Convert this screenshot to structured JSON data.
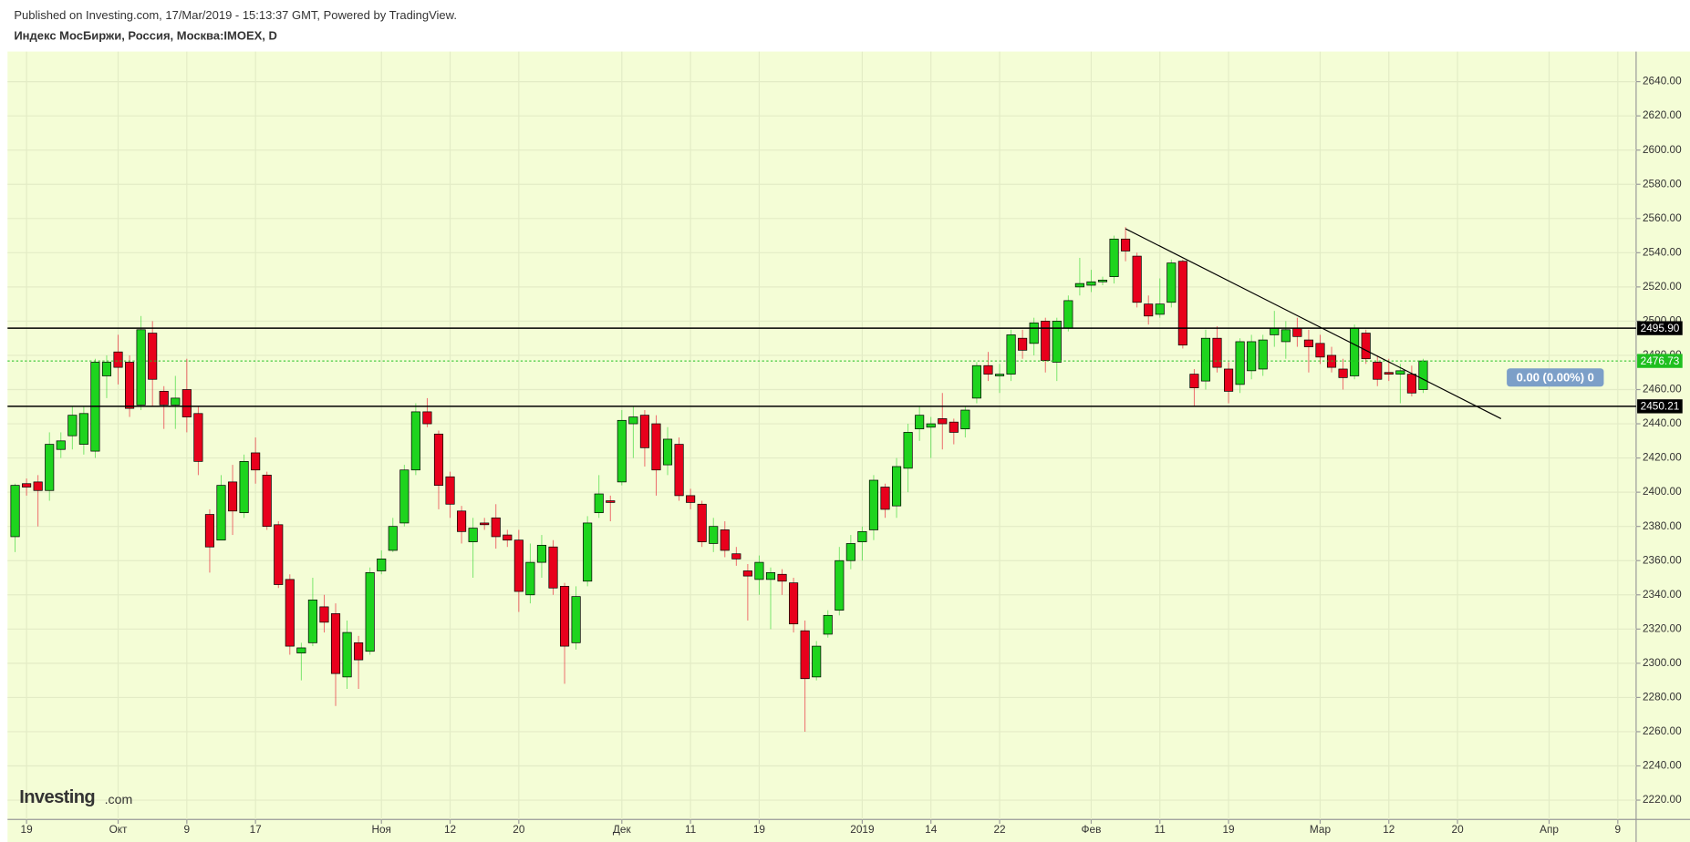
{
  "header": {
    "published": "Published on Investing.com, 17/Mar/2019 - 15:13:37 GMT, Powered by TradingView.",
    "instrument": "Индекс МосБиржи, Россия, Москва:IMOEX, D"
  },
  "logo": {
    "brand": "Investing",
    "suffix": ".com"
  },
  "chart_data": {
    "type": "candlestick",
    "up_color": "#1ed41e",
    "down_color": "#e8001c",
    "open": [
      2374,
      2405,
      2406,
      2401,
      2425,
      2433,
      2428,
      2424,
      2468,
      2482,
      2476,
      2451,
      2493,
      2459,
      2451,
      2460,
      2446,
      2387,
      2372,
      2406,
      2388,
      2423,
      2410,
      2381,
      2349,
      2306,
      2312,
      2333,
      2329,
      2292,
      2312,
      2307,
      2354,
      2366,
      2382,
      2413,
      2447,
      2434,
      2409,
      2389,
      2371,
      2382,
      2385,
      2375,
      2372,
      2340,
      2359,
      2368,
      2345,
      2312,
      2348,
      2388,
      2395,
      2406,
      2440,
      2445,
      2440,
      2416,
      2428,
      2398,
      2393,
      2370,
      2378,
      2364,
      2354,
      2349,
      2349,
      2352,
      2347,
      2319,
      2292,
      2317,
      2331,
      2360,
      2371,
      2378,
      2403,
      2392,
      2414,
      2437,
      2438,
      2443,
      2441,
      2437,
      2455,
      2474,
      2468,
      2469,
      2490,
      2487,
      2500,
      2476,
      2496,
      2520,
      2521,
      2523,
      2526,
      2548,
      2538,
      2510,
      2504,
      2511,
      2535,
      2469,
      2465,
      2490,
      2472,
      2463,
      2471,
      2472,
      2492,
      2488,
      2496,
      2489,
      2487,
      2480,
      2472,
      2468,
      2493,
      2476,
      2470,
      2469,
      2469,
      2460
    ],
    "high": [
      2405,
      2408,
      2410,
      2435,
      2435,
      2450,
      2450,
      2478,
      2480,
      2492,
      2480,
      2503,
      2500,
      2462,
      2468,
      2478,
      2450,
      2390,
      2410,
      2416,
      2422,
      2432,
      2412,
      2383,
      2352,
      2312,
      2350,
      2340,
      2335,
      2325,
      2316,
      2356,
      2366,
      2385,
      2416,
      2452,
      2455,
      2436,
      2412,
      2392,
      2385,
      2385,
      2393,
      2378,
      2378,
      2370,
      2375,
      2372,
      2347,
      2345,
      2386,
      2410,
      2398,
      2448,
      2450,
      2448,
      2445,
      2438,
      2432,
      2402,
      2395,
      2385,
      2383,
      2368,
      2358,
      2363,
      2356,
      2355,
      2350,
      2325,
      2313,
      2331,
      2368,
      2375,
      2380,
      2410,
      2405,
      2420,
      2440,
      2450,
      2444,
      2458,
      2443,
      2450,
      2476,
      2482,
      2475,
      2495,
      2495,
      2502,
      2502,
      2502,
      2515,
      2537,
      2530,
      2526,
      2550,
      2555,
      2540,
      2515,
      2525,
      2536,
      2536,
      2472,
      2495,
      2497,
      2476,
      2490,
      2492,
      2492,
      2506,
      2500,
      2502,
      2495,
      2492,
      2485,
      2478,
      2498,
      2495,
      2480,
      2478,
      2475,
      2474,
      2478
    ],
    "low": [
      2365,
      2398,
      2380,
      2395,
      2420,
      2425,
      2422,
      2420,
      2455,
      2463,
      2444,
      2448,
      2450,
      2437,
      2437,
      2435,
      2410,
      2353,
      2372,
      2375,
      2385,
      2405,
      2378,
      2344,
      2305,
      2290,
      2310,
      2318,
      2275,
      2285,
      2285,
      2305,
      2352,
      2365,
      2380,
      2410,
      2438,
      2390,
      2385,
      2370,
      2350,
      2378,
      2367,
      2368,
      2330,
      2335,
      2350,
      2340,
      2288,
      2308,
      2345,
      2385,
      2383,
      2404,
      2420,
      2415,
      2398,
      2410,
      2395,
      2390,
      2368,
      2365,
      2362,
      2357,
      2325,
      2340,
      2320,
      2340,
      2318,
      2260,
      2290,
      2315,
      2328,
      2355,
      2360,
      2372,
      2385,
      2385,
      2400,
      2430,
      2420,
      2425,
      2428,
      2432,
      2452,
      2465,
      2458,
      2465,
      2478,
      2480,
      2470,
      2465,
      2494,
      2515,
      2517,
      2521,
      2522,
      2535,
      2508,
      2498,
      2502,
      2508,
      2484,
      2450,
      2460,
      2470,
      2452,
      2458,
      2466,
      2468,
      2485,
      2478,
      2485,
      2470,
      2475,
      2470,
      2460,
      2466,
      2475,
      2462,
      2465,
      2452,
      2456,
      2458
    ],
    "close": [
      2404,
      2403,
      2401,
      2428,
      2430,
      2445,
      2446,
      2476,
      2476,
      2473,
      2449,
      2495,
      2466,
      2451,
      2455,
      2444,
      2418,
      2368,
      2404,
      2389,
      2418,
      2413,
      2380,
      2346,
      2310,
      2309,
      2337,
      2324,
      2294,
      2318,
      2302,
      2353,
      2361,
      2380,
      2413,
      2447,
      2440,
      2404,
      2393,
      2377,
      2379,
      2381,
      2374,
      2372,
      2342,
      2359,
      2369,
      2344,
      2310,
      2339,
      2382,
      2399,
      2394,
      2442,
      2444,
      2426,
      2413,
      2431,
      2398,
      2394,
      2371,
      2380,
      2366,
      2361,
      2351,
      2359,
      2353,
      2348,
      2323,
      2291,
      2310,
      2328,
      2360,
      2370,
      2377,
      2407,
      2390,
      2415,
      2435,
      2445,
      2440,
      2440,
      2435,
      2448,
      2474,
      2469,
      2469,
      2492,
      2483,
      2499,
      2477,
      2500,
      2512,
      2522,
      2523,
      2524,
      2548,
      2541,
      2511,
      2503,
      2510,
      2534,
      2486,
      2461,
      2490,
      2473,
      2459,
      2488,
      2488,
      2489,
      2496,
      2495,
      2491,
      2485,
      2479,
      2473,
      2467,
      2496,
      2478,
      2466,
      2469,
      2471,
      2458,
      2476.73
    ],
    "xlim": [
      -0.66,
      141.6
    ],
    "xticks": [
      {
        "value": 1,
        "label": "19"
      },
      {
        "value": 9,
        "label": "Окт"
      },
      {
        "value": 15,
        "label": "9"
      },
      {
        "value": 21,
        "label": "17"
      },
      {
        "value": 32,
        "label": "Ноя"
      },
      {
        "value": 38,
        "label": "12"
      },
      {
        "value": 44,
        "label": "20"
      },
      {
        "value": 53,
        "label": "Дек"
      },
      {
        "value": 59,
        "label": "11"
      },
      {
        "value": 65,
        "label": "19"
      },
      {
        "value": 74,
        "label": "2019"
      },
      {
        "value": 80,
        "label": "14"
      },
      {
        "value": 86,
        "label": "22"
      },
      {
        "value": 94,
        "label": "Фев"
      },
      {
        "value": 100,
        "label": "11"
      },
      {
        "value": 106,
        "label": "19"
      },
      {
        "value": 114,
        "label": "Мар"
      },
      {
        "value": 120,
        "label": "12"
      },
      {
        "value": 126,
        "label": "20"
      },
      {
        "value": 134,
        "label": "Апр"
      },
      {
        "value": 140,
        "label": "9"
      }
    ],
    "ylim": [
      2208.7,
      2657.6
    ],
    "yticks": [
      {
        "value": 2220,
        "label": "2220.00"
      },
      {
        "value": 2240,
        "label": "2240.00"
      },
      {
        "value": 2260,
        "label": "2260.00"
      },
      {
        "value": 2280,
        "label": "2280.00"
      },
      {
        "value": 2300,
        "label": "2300.00"
      },
      {
        "value": 2320,
        "label": "2320.00"
      },
      {
        "value": 2340,
        "label": "2340.00"
      },
      {
        "value": 2360,
        "label": "2360.00"
      },
      {
        "value": 2380,
        "label": "2380.00"
      },
      {
        "value": 2400,
        "label": "2400.00"
      },
      {
        "value": 2420,
        "label": "2420.00"
      },
      {
        "value": 2440,
        "label": "2440.00"
      },
      {
        "value": 2460,
        "label": "2460.00"
      },
      {
        "value": 2480,
        "label": "2480.00"
      },
      {
        "value": 2500,
        "label": "2500.00"
      },
      {
        "value": 2520,
        "label": "2520.00"
      },
      {
        "value": 2540,
        "label": "2540.00"
      },
      {
        "value": 2560,
        "label": "2560.00"
      },
      {
        "value": 2580,
        "label": "2580.00"
      },
      {
        "value": 2600,
        "label": "2600.00"
      },
      {
        "value": 2620,
        "label": "2620.00"
      },
      {
        "value": 2640,
        "label": "2640.00"
      }
    ],
    "grid": true,
    "levels": [
      {
        "price": {
          "value": 2495.9,
          "label": "2495.90"
        },
        "color": "#000000"
      },
      {
        "price": 2476.73,
        "color": "#1fbf1f",
        "dashed": true
      },
      {
        "price": 2450.21,
        "color": "#000000"
      }
    ],
    "trendline": {
      "x": [
        97,
        129.8
      ],
      "y": [
        2554,
        2443
      ],
      "color": "#000000"
    },
    "change_label": "0.00 (0.00%) 0"
  }
}
